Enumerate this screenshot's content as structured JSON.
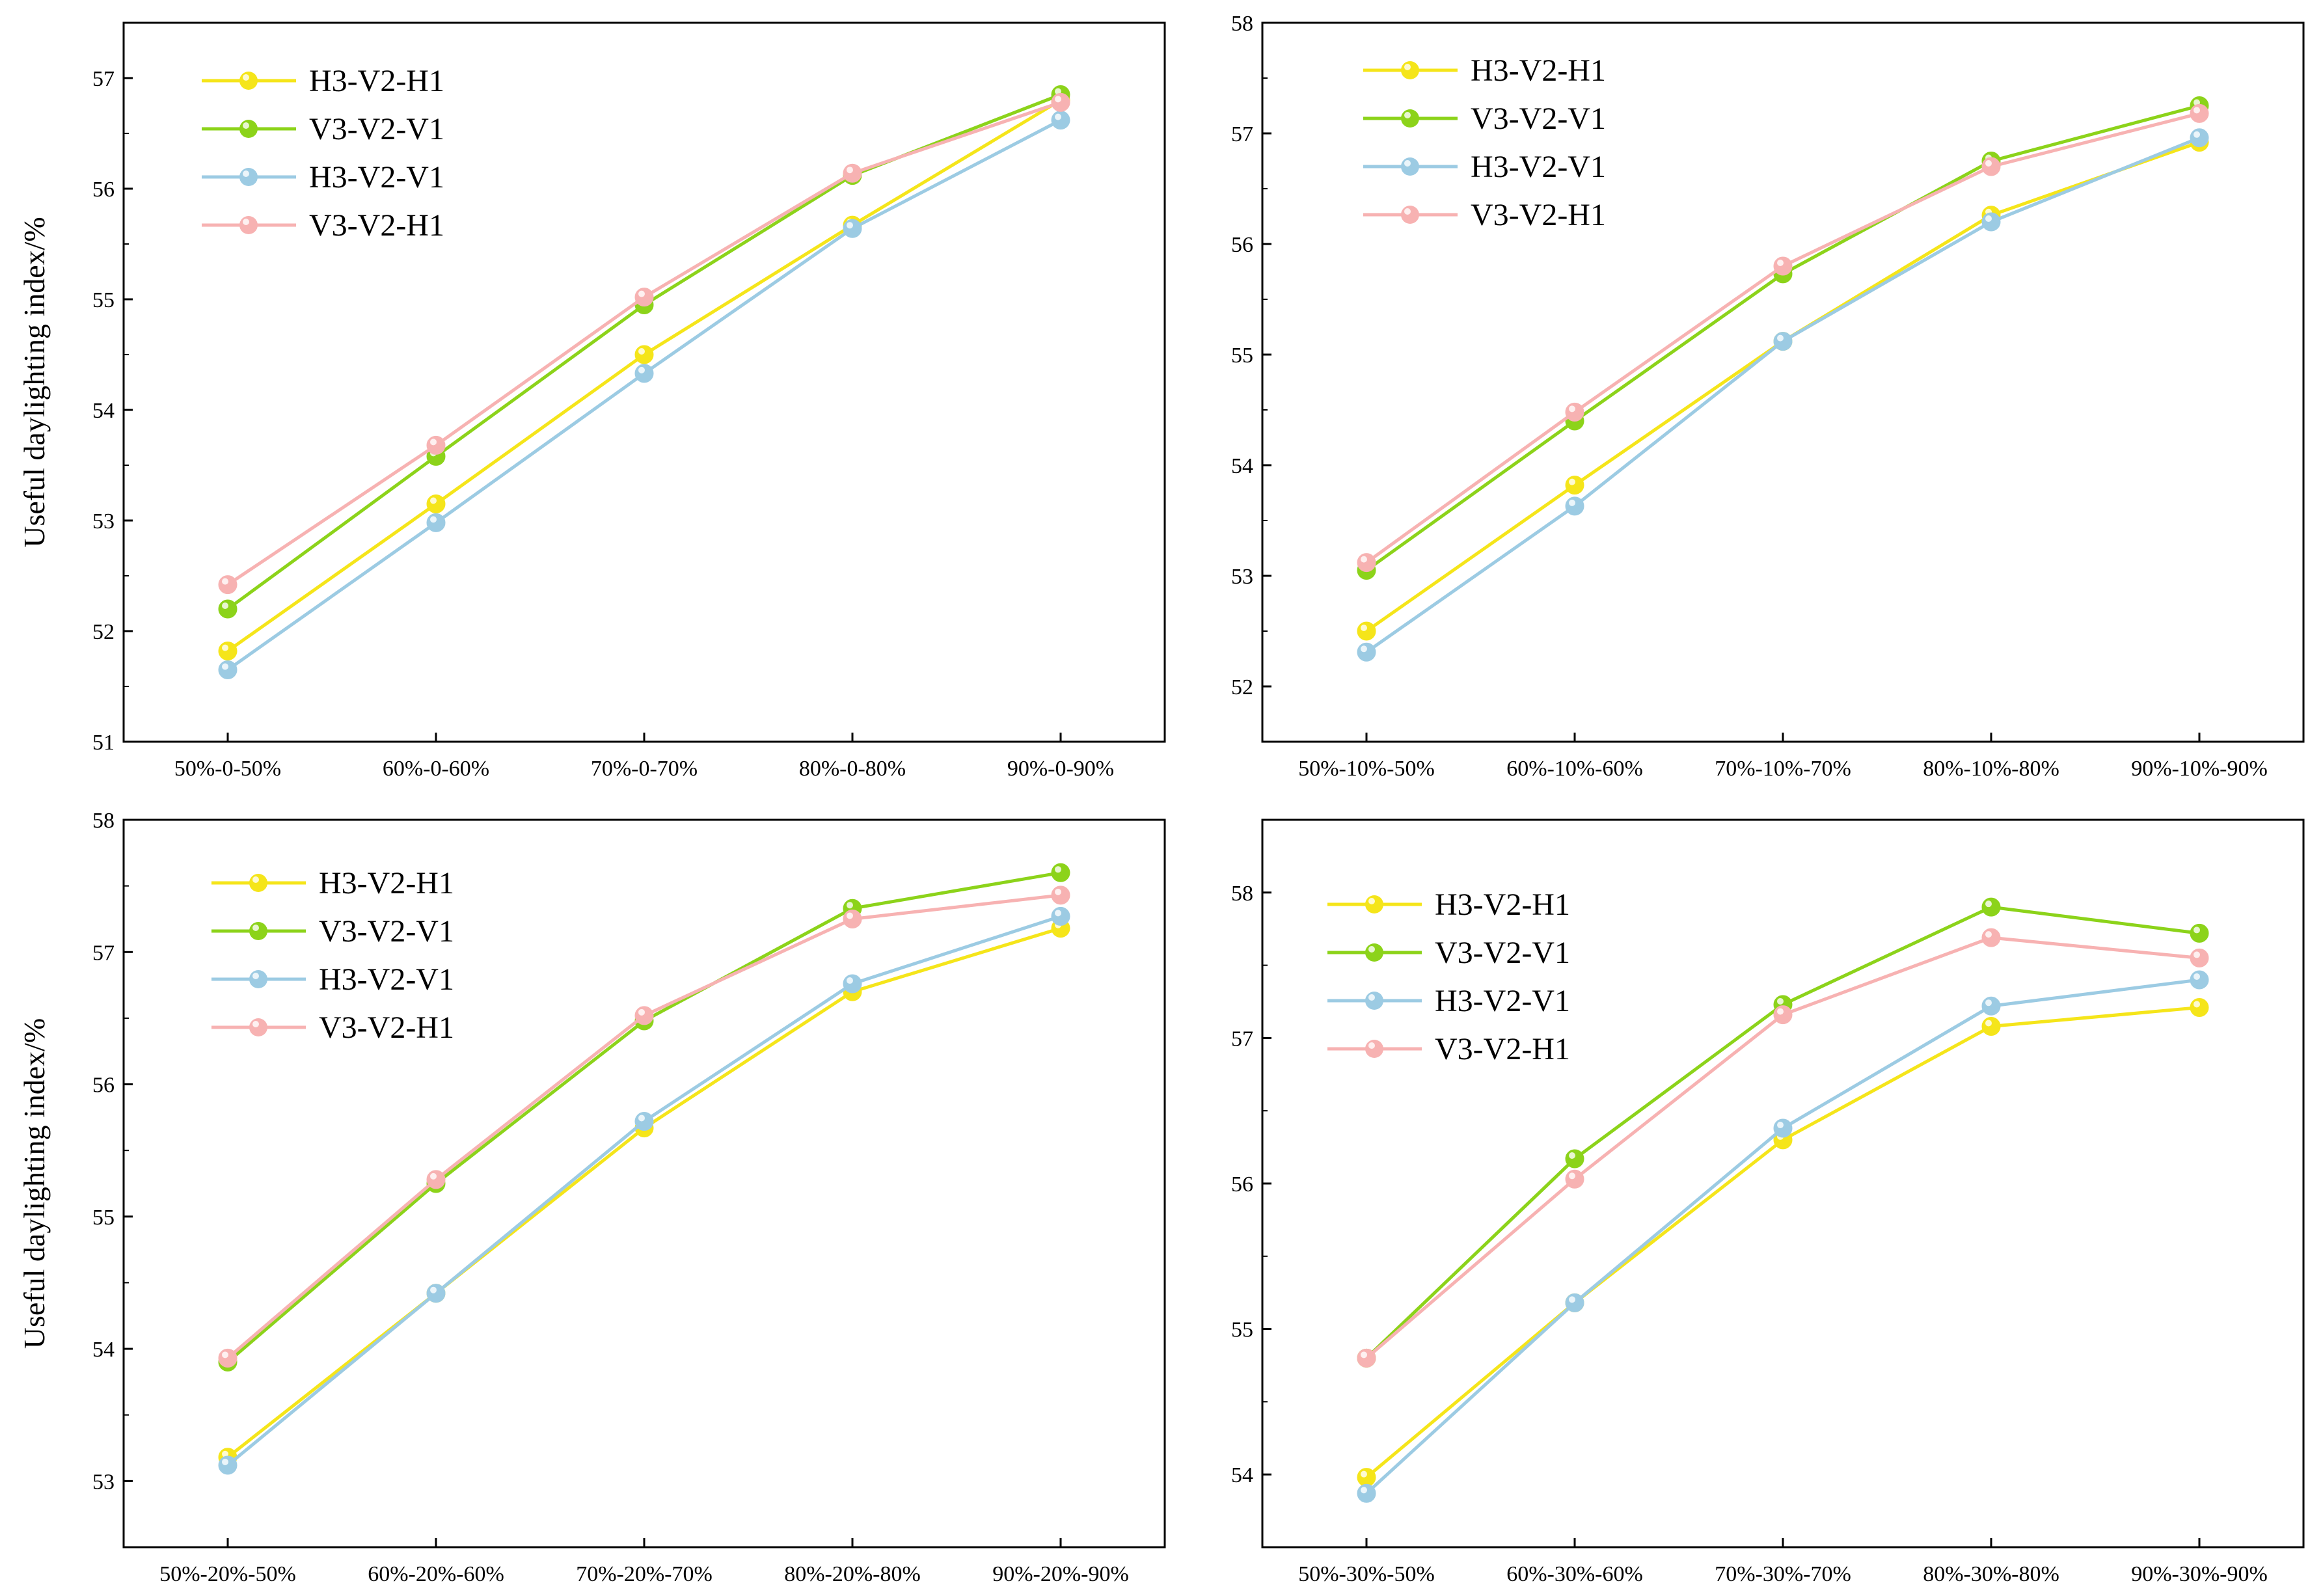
{
  "colors": {
    "H3-V2-H1": "#f5e51a",
    "V3-V2-V1": "#8cd31a",
    "H3-V2-V1": "#9ccbe3",
    "V3-V2-H1": "#f7b2b2",
    "axis": "#000000"
  },
  "chart_data": [
    {
      "type": "line",
      "ylabel": "Useful daylighting index/%",
      "categories": [
        "50%-0-50%",
        "60%-0-60%",
        "70%-0-70%",
        "80%-0-80%",
        "90%-0-90%"
      ],
      "ylim": [
        51,
        57.5
      ],
      "yticks": [
        51,
        52,
        53,
        54,
        55,
        56,
        57
      ],
      "series": [
        {
          "name": "H3-V2-H1",
          "values": [
            51.82,
            53.15,
            54.5,
            55.67,
            56.8
          ]
        },
        {
          "name": "V3-V2-V1",
          "values": [
            52.2,
            53.58,
            54.95,
            56.12,
            56.85
          ]
        },
        {
          "name": "H3-V2-V1",
          "values": [
            51.65,
            52.98,
            54.33,
            55.64,
            56.62
          ]
        },
        {
          "name": "V3-V2-H1",
          "values": [
            52.42,
            53.68,
            55.02,
            56.14,
            56.78
          ]
        }
      ]
    },
    {
      "type": "line",
      "ylabel": "",
      "categories": [
        "50%-10%-50%",
        "60%-10%-60%",
        "70%-10%-70%",
        "80%-10%-80%",
        "90%-10%-90%"
      ],
      "ylim": [
        51.5,
        58
      ],
      "yticks": [
        52,
        53,
        54,
        55,
        56,
        57,
        58
      ],
      "series": [
        {
          "name": "H3-V2-H1",
          "values": [
            52.5,
            53.82,
            55.12,
            56.26,
            56.92
          ]
        },
        {
          "name": "V3-V2-V1",
          "values": [
            53.05,
            54.4,
            55.73,
            56.75,
            57.25
          ]
        },
        {
          "name": "H3-V2-V1",
          "values": [
            52.31,
            53.63,
            55.12,
            56.2,
            56.96
          ]
        },
        {
          "name": "V3-V2-H1",
          "values": [
            53.12,
            54.48,
            55.8,
            56.7,
            57.18
          ]
        }
      ]
    },
    {
      "type": "line",
      "ylabel": "Useful daylighting index/%",
      "categories": [
        "50%-20%-50%",
        "60%-20%-60%",
        "70%-20%-70%",
        "80%-20%-80%",
        "90%-20%-90%"
      ],
      "ylim": [
        52.5,
        58
      ],
      "yticks": [
        53,
        54,
        55,
        56,
        57,
        58
      ],
      "series": [
        {
          "name": "H3-V2-H1",
          "values": [
            53.18,
            54.42,
            55.67,
            56.7,
            57.18
          ]
        },
        {
          "name": "V3-V2-V1",
          "values": [
            53.9,
            55.25,
            56.48,
            57.33,
            57.6
          ]
        },
        {
          "name": "H3-V2-V1",
          "values": [
            53.12,
            54.42,
            55.72,
            56.76,
            57.27
          ]
        },
        {
          "name": "V3-V2-H1",
          "values": [
            53.93,
            55.28,
            56.52,
            57.25,
            57.43
          ]
        }
      ]
    },
    {
      "type": "line",
      "ylabel": "",
      "categories": [
        "50%-30%-50%",
        "60%-30%-60%",
        "70%-30%-70%",
        "80%-30%-80%",
        "90%-30%-90%"
      ],
      "ylim": [
        53.5,
        58.5
      ],
      "yticks": [
        54,
        55,
        56,
        57,
        58
      ],
      "series": [
        {
          "name": "H3-V2-H1",
          "values": [
            53.98,
            55.18,
            56.3,
            57.08,
            57.21
          ]
        },
        {
          "name": "V3-V2-V1",
          "values": [
            54.8,
            56.17,
            57.23,
            57.9,
            57.72
          ]
        },
        {
          "name": "H3-V2-V1",
          "values": [
            53.87,
            55.18,
            56.38,
            57.22,
            57.4
          ]
        },
        {
          "name": "V3-V2-H1",
          "values": [
            54.8,
            56.03,
            57.16,
            57.69,
            57.55
          ]
        }
      ]
    }
  ]
}
